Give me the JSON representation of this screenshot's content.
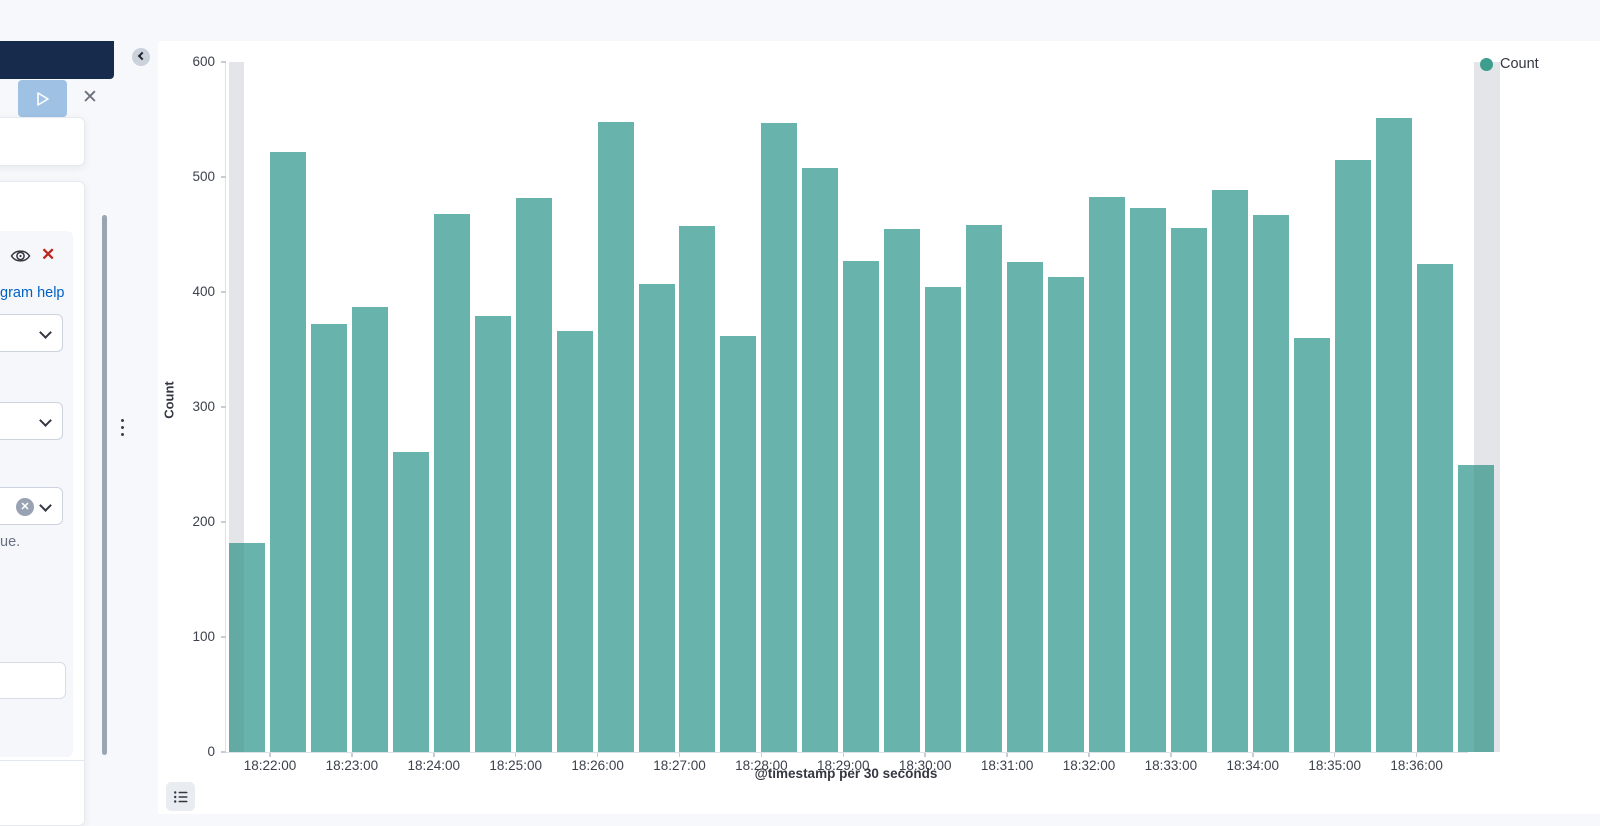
{
  "sidebar": {
    "help_link": "gram help",
    "truncated_value_text": "ue.",
    "close_button_glyph": "✕",
    "remove_button_glyph": "✕",
    "clear_badge_glyph": "✕"
  },
  "legend": {
    "items": [
      {
        "label": "Count",
        "color": "#3d9e8e"
      }
    ]
  },
  "colors": {
    "bar": "#68b3ab",
    "partial_band": "#e4e5e8",
    "legend_dot": "#3d9e8e"
  },
  "chart_data": {
    "type": "bar",
    "title": "",
    "xlabel": "@timestamp per 30 seconds",
    "ylabel": "Count",
    "ylim": [
      0,
      600
    ],
    "y_ticks": [
      0,
      100,
      200,
      300,
      400,
      500,
      600
    ],
    "grid": "off",
    "legend_position": "top-right",
    "categories": [
      "18:21:30",
      "18:22:00",
      "18:22:30",
      "18:23:00",
      "18:23:30",
      "18:24:00",
      "18:24:30",
      "18:25:00",
      "18:25:30",
      "18:26:00",
      "18:26:30",
      "18:27:00",
      "18:27:30",
      "18:28:00",
      "18:28:30",
      "18:29:00",
      "18:29:30",
      "18:30:00",
      "18:30:30",
      "18:31:00",
      "18:31:30",
      "18:32:00",
      "18:32:30",
      "18:33:00",
      "18:33:30",
      "18:34:00",
      "18:34:30",
      "18:35:00",
      "18:35:30",
      "18:36:00",
      "18:36:30"
    ],
    "values": [
      182,
      522,
      372,
      387,
      261,
      468,
      379,
      482,
      366,
      548,
      407,
      457,
      362,
      547,
      508,
      427,
      455,
      404,
      458,
      426,
      413,
      483,
      473,
      456,
      489,
      467,
      360,
      515,
      551,
      424,
      250
    ],
    "x_minute_labels": [
      "18:22:00",
      "18:23:00",
      "18:24:00",
      "18:25:00",
      "18:26:00",
      "18:27:00",
      "18:28:00",
      "18:29:00",
      "18:30:00",
      "18:31:00",
      "18:32:00",
      "18:33:00",
      "18:34:00",
      "18:35:00",
      "18:36:00"
    ],
    "partial_bucket_note": "first and last buckets rendered over gray partial-data bands"
  }
}
